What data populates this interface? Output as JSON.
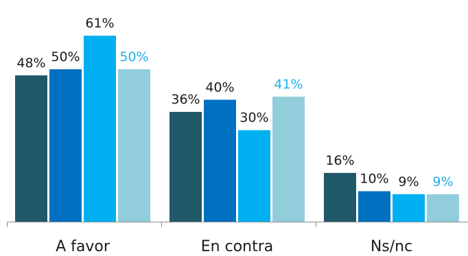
{
  "chart_data": {
    "type": "bar",
    "title": "",
    "xlabel": "",
    "ylabel": "",
    "categories": [
      "A favor",
      "En contra",
      "Ns/nc"
    ],
    "ylim": [
      0,
      64
    ],
    "grid": false,
    "legend": "none",
    "series": [
      {
        "color": "#215868",
        "label_color": "#1a1a1a",
        "values": [
          48,
          36,
          16
        ],
        "labels": [
          "48%",
          "36%",
          "16%"
        ]
      },
      {
        "color": "#0070c0",
        "label_color": "#1a1a1a",
        "values": [
          50,
          40,
          10
        ],
        "labels": [
          "50%",
          "40%",
          "10%"
        ]
      },
      {
        "color": "#00b0f0",
        "label_color": "#1a1a1a",
        "values": [
          61,
          30,
          9
        ],
        "labels": [
          "61%",
          "30%",
          "9%"
        ]
      },
      {
        "color": "#92cddc",
        "label_color": "#1fb0e6",
        "values": [
          50,
          41,
          9
        ],
        "labels": [
          "50%",
          "41%",
          "9%"
        ]
      }
    ]
  }
}
